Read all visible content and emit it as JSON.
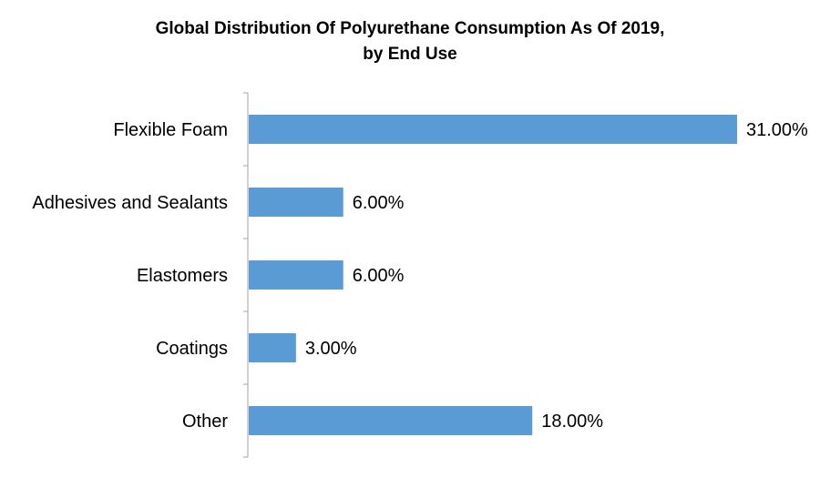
{
  "chart_data": {
    "type": "bar",
    "orientation": "horizontal",
    "title_line1": "Global Distribution Of Polyurethane Consumption As Of 2019,",
    "title_line2": "by End Use",
    "categories": [
      "Flexible Foam",
      "Adhesives and Sealants",
      "Elastomers",
      "Coatings",
      "Other"
    ],
    "values": [
      31,
      6,
      6,
      3,
      18
    ],
    "value_labels": [
      "31.00%",
      "6.00%",
      "6.00%",
      "3.00%",
      "18.00%"
    ],
    "unit": "%",
    "xlim": [
      0,
      31
    ],
    "grid": false,
    "legend": "none",
    "bar_color": "#5B9BD5"
  }
}
